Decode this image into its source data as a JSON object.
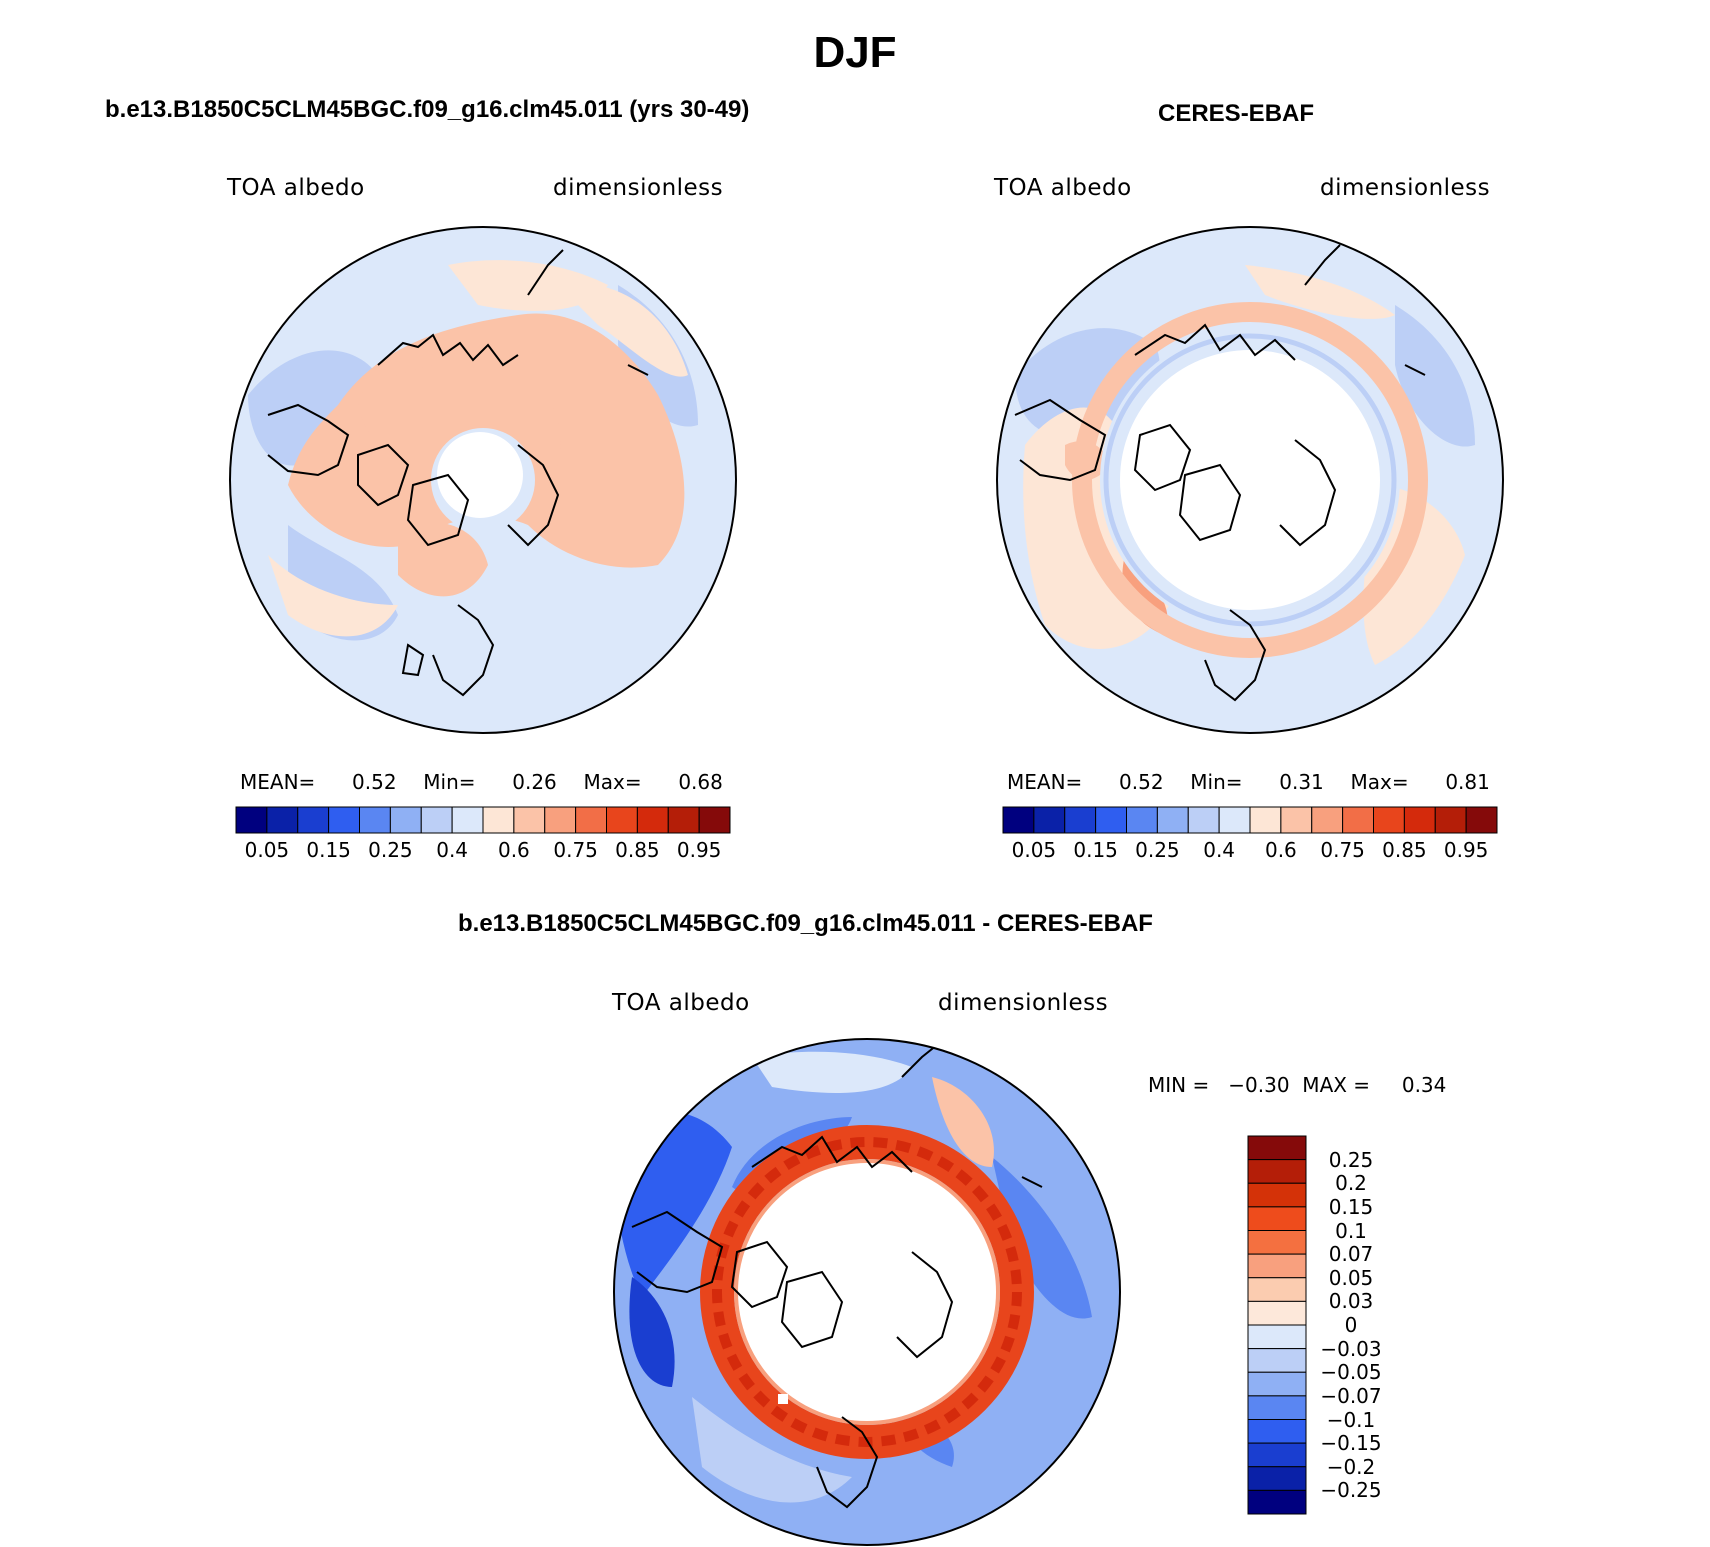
{
  "title": "DJF",
  "panels": [
    {
      "id": "model",
      "case_title": "b.e13.B1850C5CLM45BGC.f09_g16.clm45.011 (yrs 30-49)",
      "var_label": "TOA albedo",
      "units_label": "dimensionless",
      "stats": {
        "mean_label": "MEAN=",
        "mean": "0.52",
        "min_label": "Min=",
        "min": "0.26",
        "max_label": "Max=",
        "max": "0.68"
      }
    },
    {
      "id": "obs",
      "case_title": "CERES-EBAF",
      "var_label": "TOA albedo",
      "units_label": "dimensionless",
      "stats": {
        "mean_label": "MEAN=",
        "mean": "0.52",
        "min_label": "Min=",
        "min": "0.31",
        "max_label": "Max=",
        "max": "0.81"
      }
    }
  ],
  "abs_colorbar": {
    "colors": [
      "#00007f",
      "#0a21a8",
      "#1a3ed0",
      "#2f5ef0",
      "#5a86f2",
      "#8fb0f4",
      "#bccff6",
      "#dce8fa",
      "#fde6d6",
      "#fbc3a8",
      "#f8a07e",
      "#f26e47",
      "#e8451c",
      "#d42a0c",
      "#b41e08",
      "#850a0a"
    ],
    "tick_labels": [
      "0.05",
      "0.15",
      "0.25",
      "0.4",
      "0.6",
      "0.75",
      "0.85",
      "0.95"
    ]
  },
  "diff_panel": {
    "case_title": "b.e13.B1850C5CLM45BGC.f09_g16.clm45.011 - CERES-EBAF",
    "var_label": "TOA albedo",
    "units_label": "dimensionless",
    "minmax_label": "MIN =   −0.30  MAX =     0.34",
    "colorbar": {
      "colors": [
        "#850a0a",
        "#b41e08",
        "#d43208",
        "#ee4c1c",
        "#f47040",
        "#f8a07e",
        "#fbccb0",
        "#fde8da",
        "#dce8fa",
        "#bccff6",
        "#8fb0f4",
        "#5a86f2",
        "#2f5ef0",
        "#1a3ed0",
        "#0a21a8",
        "#00007f"
      ],
      "tick_labels": [
        "0.25",
        "0.2",
        "0.15",
        "0.1",
        "0.07",
        "0.05",
        "0.03",
        "0",
        "−0.03",
        "−0.05",
        "−0.07",
        "−0.1",
        "−0.15",
        "−0.2",
        "−0.25"
      ]
    }
  }
}
